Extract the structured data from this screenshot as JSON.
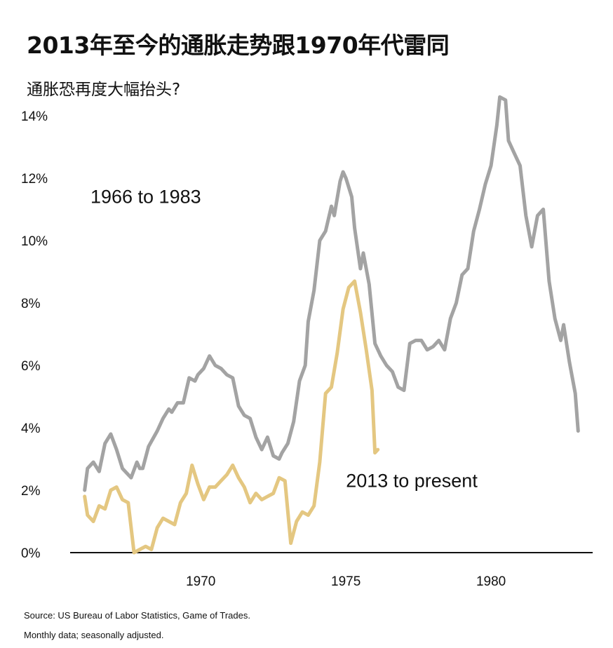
{
  "title": "2013年至今的通胀走势跟1970年代雷同",
  "subtitle": "通胀恐再度大幅抬头?",
  "footer": {
    "source": "Source: US Bureau of Labor Statistics, Game of Trades.",
    "note": "Monthly data; seasonally adjusted."
  },
  "colors": {
    "series_1966": "#a3a3a3",
    "series_2013": "#e4c781",
    "axis": "#111111"
  },
  "chart_data": {
    "type": "line",
    "title": "2013年至今的通胀走势跟1970年代雷同",
    "subtitle": "通胀恐再度大幅抬头?",
    "xlabel": "",
    "ylabel": "",
    "xlim": [
      1965.5,
      1983.5
    ],
    "ylim": [
      0,
      14
    ],
    "x_ticks": [
      1970,
      1975,
      1980
    ],
    "x_tick_labels": [
      "1970",
      "1975",
      "1980"
    ],
    "y_ticks": [
      0,
      2,
      4,
      6,
      8,
      10,
      12,
      14
    ],
    "y_tick_labels": [
      "0%",
      "2%",
      "4%",
      "6%",
      "8%",
      "10%",
      "12%",
      "14%"
    ],
    "grid": false,
    "legend": "none",
    "annotations": [
      {
        "text": "1966 to 1983",
        "x": 1966.2,
        "y": 11.2
      },
      {
        "text": "2013 to present",
        "x": 1975.0,
        "y": 2.1
      }
    ],
    "series": [
      {
        "name": "1966 to 1983",
        "color": "#a3a3a3",
        "x": [
          1966.0,
          1966.1,
          1966.3,
          1966.5,
          1966.7,
          1966.9,
          1967.1,
          1967.3,
          1967.6,
          1967.8,
          1967.9,
          1968.0,
          1968.2,
          1968.5,
          1968.7,
          1968.9,
          1969.0,
          1969.2,
          1969.4,
          1969.6,
          1969.8,
          1969.9,
          1970.1,
          1970.3,
          1970.5,
          1970.7,
          1970.9,
          1971.1,
          1971.3,
          1971.5,
          1971.7,
          1971.9,
          1972.1,
          1972.3,
          1972.5,
          1972.7,
          1972.8,
          1973.0,
          1973.2,
          1973.4,
          1973.6,
          1973.7,
          1973.9,
          1974.1,
          1974.3,
          1974.5,
          1974.6,
          1974.8,
          1974.9,
          1975.0,
          1975.2,
          1975.3,
          1975.5,
          1975.6,
          1975.8,
          1976.0,
          1976.2,
          1976.4,
          1976.6,
          1976.8,
          1977.0,
          1977.2,
          1977.4,
          1977.6,
          1977.8,
          1978.0,
          1978.2,
          1978.4,
          1978.6,
          1978.8,
          1979.0,
          1979.2,
          1979.4,
          1979.6,
          1979.8,
          1980.0,
          1980.2,
          1980.3,
          1980.5,
          1980.6,
          1980.8,
          1981.0,
          1981.2,
          1981.4,
          1981.6,
          1981.8,
          1982.0,
          1982.2,
          1982.4,
          1982.5,
          1982.7,
          1982.9,
          1983.0
        ],
        "values": [
          2.0,
          2.7,
          2.9,
          2.6,
          3.5,
          3.8,
          3.3,
          2.7,
          2.4,
          2.9,
          2.7,
          2.7,
          3.4,
          3.9,
          4.3,
          4.6,
          4.5,
          4.8,
          4.8,
          5.6,
          5.5,
          5.7,
          5.9,
          6.3,
          6.0,
          5.9,
          5.7,
          5.6,
          4.7,
          4.4,
          4.3,
          3.7,
          3.3,
          3.7,
          3.1,
          3.0,
          3.2,
          3.5,
          4.2,
          5.5,
          6.0,
          7.4,
          8.4,
          10.0,
          10.3,
          11.1,
          10.8,
          11.9,
          12.2,
          12.0,
          11.4,
          10.4,
          9.1,
          9.6,
          8.6,
          6.7,
          6.3,
          6.0,
          5.8,
          5.3,
          5.2,
          6.7,
          6.8,
          6.8,
          6.5,
          6.6,
          6.8,
          6.5,
          7.5,
          8.0,
          8.9,
          9.1,
          10.3,
          11.0,
          11.8,
          12.4,
          13.7,
          14.6,
          14.5,
          13.2,
          12.8,
          12.4,
          10.8,
          9.8,
          10.8,
          11.0,
          8.7,
          7.5,
          6.8,
          7.3,
          6.1,
          5.1,
          3.9
        ]
      },
      {
        "name": "2013 to present",
        "color": "#e4c781",
        "x": [
          1966.0,
          1966.1,
          1966.3,
          1966.5,
          1966.7,
          1966.9,
          1967.1,
          1967.3,
          1967.5,
          1967.7,
          1967.9,
          1968.1,
          1968.3,
          1968.5,
          1968.7,
          1968.9,
          1969.1,
          1969.3,
          1969.5,
          1969.7,
          1969.9,
          1970.1,
          1970.3,
          1970.5,
          1970.7,
          1970.9,
          1971.1,
          1971.3,
          1971.5,
          1971.7,
          1971.9,
          1972.1,
          1972.3,
          1972.5,
          1972.7,
          1972.9,
          1973.1,
          1973.3,
          1973.5,
          1973.7,
          1973.9,
          1974.1,
          1974.3,
          1974.5,
          1974.7,
          1974.9,
          1975.1,
          1975.3,
          1975.5,
          1975.7,
          1975.9,
          1976.0,
          1976.1
        ],
        "values": [
          1.8,
          1.2,
          1.0,
          1.5,
          1.4,
          2.0,
          2.1,
          1.7,
          1.6,
          0.0,
          0.1,
          0.2,
          0.1,
          0.8,
          1.1,
          1.0,
          0.9,
          1.6,
          1.9,
          2.8,
          2.2,
          1.7,
          2.1,
          2.1,
          2.3,
          2.5,
          2.8,
          2.4,
          2.1,
          1.6,
          1.9,
          1.7,
          1.8,
          1.9,
          2.4,
          2.3,
          0.3,
          1.0,
          1.3,
          1.2,
          1.5,
          2.9,
          5.1,
          5.3,
          6.4,
          7.8,
          8.5,
          8.7,
          7.7,
          6.5,
          5.2,
          3.2,
          3.3
        ]
      }
    ]
  }
}
